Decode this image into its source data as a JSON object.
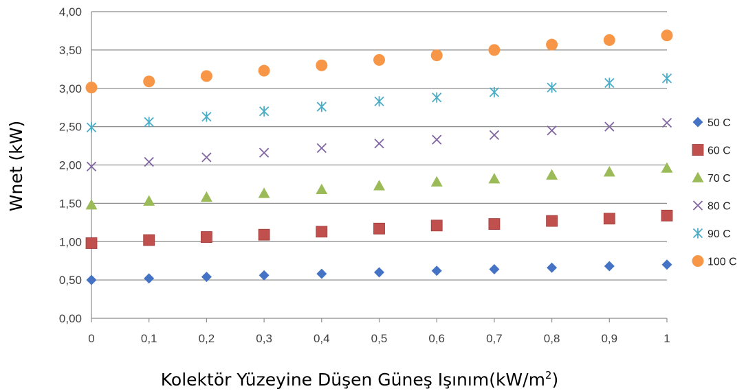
{
  "chart_data": {
    "type": "scatter",
    "xlabel": "Kolektör Yüzeyine Düşen Güneş Işınım(kW/m",
    "xlabel_sup": "2",
    "xlabel_end": ")",
    "ylabel": "Wnet (kW)",
    "xlim": [
      0,
      1
    ],
    "ylim": [
      0,
      4
    ],
    "x_ticks": [
      "0",
      "0,1",
      "0,2",
      "0,3",
      "0,4",
      "0,5",
      "0,6",
      "0,7",
      "0,8",
      "0,9",
      "1"
    ],
    "y_ticks": [
      "0,00",
      "0,50",
      "1,00",
      "1,50",
      "2,00",
      "2,50",
      "3,00",
      "3,50",
      "4,00"
    ],
    "grid": "horizontal",
    "legend_position": "right",
    "x": [
      0,
      0.1,
      0.2,
      0.3,
      0.4,
      0.5,
      0.6,
      0.7,
      0.8,
      0.9,
      1
    ],
    "series": [
      {
        "name": "50 C",
        "marker": "diamond",
        "color": "#4472C4",
        "values": [
          0.5,
          0.52,
          0.54,
          0.56,
          0.58,
          0.6,
          0.62,
          0.64,
          0.66,
          0.68,
          0.7
        ]
      },
      {
        "name": "60 C",
        "marker": "square",
        "color": "#C0504D",
        "values": [
          0.98,
          1.02,
          1.06,
          1.09,
          1.13,
          1.17,
          1.21,
          1.23,
          1.27,
          1.3,
          1.34
        ]
      },
      {
        "name": "70 C",
        "marker": "triangle",
        "color": "#9BBB59",
        "values": [
          1.48,
          1.53,
          1.58,
          1.63,
          1.68,
          1.73,
          1.78,
          1.82,
          1.87,
          1.91,
          1.96
        ]
      },
      {
        "name": "80 C",
        "marker": "x",
        "color": "#8064A2",
        "values": [
          1.98,
          2.04,
          2.1,
          2.16,
          2.22,
          2.28,
          2.33,
          2.39,
          2.45,
          2.5,
          2.55
        ]
      },
      {
        "name": "90 C",
        "marker": "star",
        "color": "#4BACC6",
        "values": [
          2.49,
          2.56,
          2.63,
          2.7,
          2.76,
          2.83,
          2.88,
          2.95,
          3.01,
          3.07,
          3.13
        ]
      },
      {
        "name": "100 C",
        "marker": "circle",
        "color": "#F79646",
        "values": [
          3.01,
          3.09,
          3.16,
          3.23,
          3.3,
          3.37,
          3.43,
          3.5,
          3.57,
          3.63,
          3.69
        ]
      }
    ]
  }
}
